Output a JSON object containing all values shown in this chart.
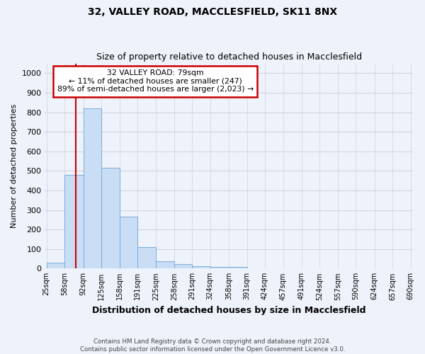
{
  "title_line1": "32, VALLEY ROAD, MACCLESFIELD, SK11 8NX",
  "title_line2": "Size of property relative to detached houses in Macclesfield",
  "xlabel": "Distribution of detached houses by size in Macclesfield",
  "ylabel": "Number of detached properties",
  "footnote": "Contains HM Land Registry data © Crown copyright and database right 2024.\nContains public sector information licensed under the Open Government Licence v3.0.",
  "bin_labels": [
    "25sqm",
    "58sqm",
    "92sqm",
    "125sqm",
    "158sqm",
    "191sqm",
    "225sqm",
    "258sqm",
    "291sqm",
    "324sqm",
    "358sqm",
    "391sqm",
    "424sqm",
    "457sqm",
    "491sqm",
    "524sqm",
    "557sqm",
    "590sqm",
    "624sqm",
    "657sqm",
    "690sqm"
  ],
  "bar_heights": [
    30,
    480,
    820,
    515,
    265,
    110,
    37,
    22,
    12,
    8,
    8,
    0,
    0,
    0,
    0,
    0,
    0,
    0,
    0,
    0
  ],
  "bar_color": "#c9ddf5",
  "bar_edge_color": "#7aaddb",
  "red_line_x": 79,
  "bin_edges_numeric": [
    25,
    58,
    92,
    125,
    158,
    191,
    225,
    258,
    291,
    324,
    358,
    391,
    424,
    457,
    491,
    524,
    557,
    590,
    624,
    657,
    690
  ],
  "ylim": [
    0,
    1050
  ],
  "yticks": [
    0,
    100,
    200,
    300,
    400,
    500,
    600,
    700,
    800,
    900,
    1000
  ],
  "annotation_title": "32 VALLEY ROAD: 79sqm",
  "annotation_line1": "← 11% of detached houses are smaller (247)",
  "annotation_line2": "89% of semi-detached houses are larger (2,023) →",
  "annotation_box_color": "#ffffff",
  "annotation_box_edge_color": "#cc0000",
  "grid_color": "#d0d0e0",
  "background_color": "#eef2fa",
  "title1_fontsize": 10,
  "title2_fontsize": 9,
  "xlabel_fontsize": 9,
  "ylabel_fontsize": 8
}
